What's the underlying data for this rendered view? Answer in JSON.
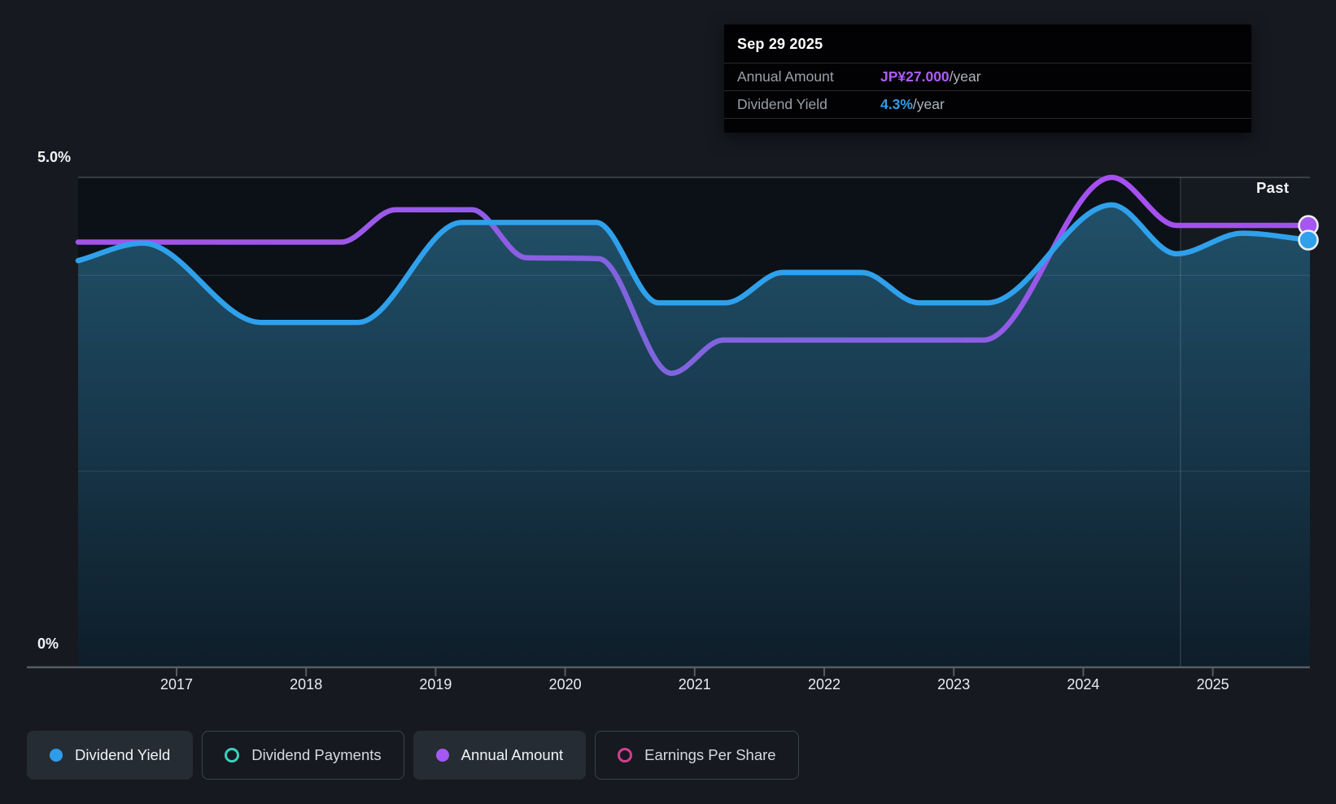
{
  "page": {
    "background": "#161a20"
  },
  "tooltip": {
    "date": "Sep 29 2025",
    "rows": [
      {
        "label": "Annual Amount",
        "value": "JP¥27.000",
        "suffix": "/year",
        "value_color": "#ad5cf7"
      },
      {
        "label": "Dividend Yield",
        "value": "4.3%",
        "suffix": "/year",
        "value_color": "#2f9fe8"
      }
    ]
  },
  "chart_data": {
    "type": "area",
    "x_axis": {
      "tick_labels": [
        "2017",
        "2018",
        "2019",
        "2020",
        "2021",
        "2022",
        "2023",
        "2024",
        "2025"
      ],
      "tick_years": [
        2017,
        2018,
        2019,
        2020,
        2021,
        2022,
        2023,
        2024,
        2025
      ],
      "range": [
        2016.24,
        2025.75
      ]
    },
    "y_axis": {
      "unit": "%",
      "range": [
        0,
        5
      ],
      "top_label": "5.0%",
      "bottom_label": "0%",
      "gridlines_pct": [
        5,
        4,
        2
      ]
    },
    "past": {
      "label": "Past",
      "start_year": 2024.75
    },
    "series": [
      {
        "name": "Dividend Yield",
        "style": "line-area",
        "color": "#2fa1ec",
        "unit": "%",
        "latest": "4.3%/year",
        "points": [
          [
            2016.24,
            4.15
          ],
          [
            2016.74,
            4.33
          ],
          [
            2017.65,
            3.52
          ],
          [
            2018.4,
            3.52
          ],
          [
            2019.2,
            4.54
          ],
          [
            2020.24,
            4.54
          ],
          [
            2020.72,
            3.72
          ],
          [
            2021.24,
            3.72
          ],
          [
            2021.68,
            4.03
          ],
          [
            2022.29,
            4.03
          ],
          [
            2022.73,
            3.72
          ],
          [
            2023.26,
            3.72
          ],
          [
            2024.22,
            4.72
          ],
          [
            2024.72,
            4.22
          ],
          [
            2025.23,
            4.43
          ],
          [
            2025.75,
            4.36
          ]
        ]
      },
      {
        "name": "Annual Amount",
        "style": "line",
        "color": "#9a57f0",
        "unit": "JP¥/year (plotted against % scale)",
        "latest": "JP¥27.000/year",
        "points": [
          [
            2016.24,
            4.34
          ],
          [
            2018.27,
            4.34
          ],
          [
            2018.69,
            4.67
          ],
          [
            2019.28,
            4.67
          ],
          [
            2019.7,
            4.18
          ],
          [
            2020.26,
            4.17
          ],
          [
            2020.82,
            3.0
          ],
          [
            2021.22,
            3.34
          ],
          [
            2023.23,
            3.34
          ],
          [
            2024.22,
            5.0
          ],
          [
            2024.72,
            4.51
          ],
          [
            2025.75,
            4.51
          ]
        ]
      }
    ],
    "end_markers": [
      {
        "series": "Annual Amount",
        "pct": 4.51,
        "color": "#a557f0"
      },
      {
        "series": "Dividend Yield",
        "pct": 4.36,
        "color": "#2fa1ec"
      }
    ]
  },
  "legend": [
    {
      "label": "Dividend Yield",
      "marker": "filled",
      "color": "#2d9cea",
      "active": true
    },
    {
      "label": "Dividend Payments",
      "marker": "ring",
      "color": "#3ecfbe",
      "active": false
    },
    {
      "label": "Annual Amount",
      "marker": "filled",
      "color": "#a558f2",
      "active": true
    },
    {
      "label": "Earnings Per Share",
      "marker": "ring",
      "color": "#d23f8e",
      "active": false
    }
  ]
}
